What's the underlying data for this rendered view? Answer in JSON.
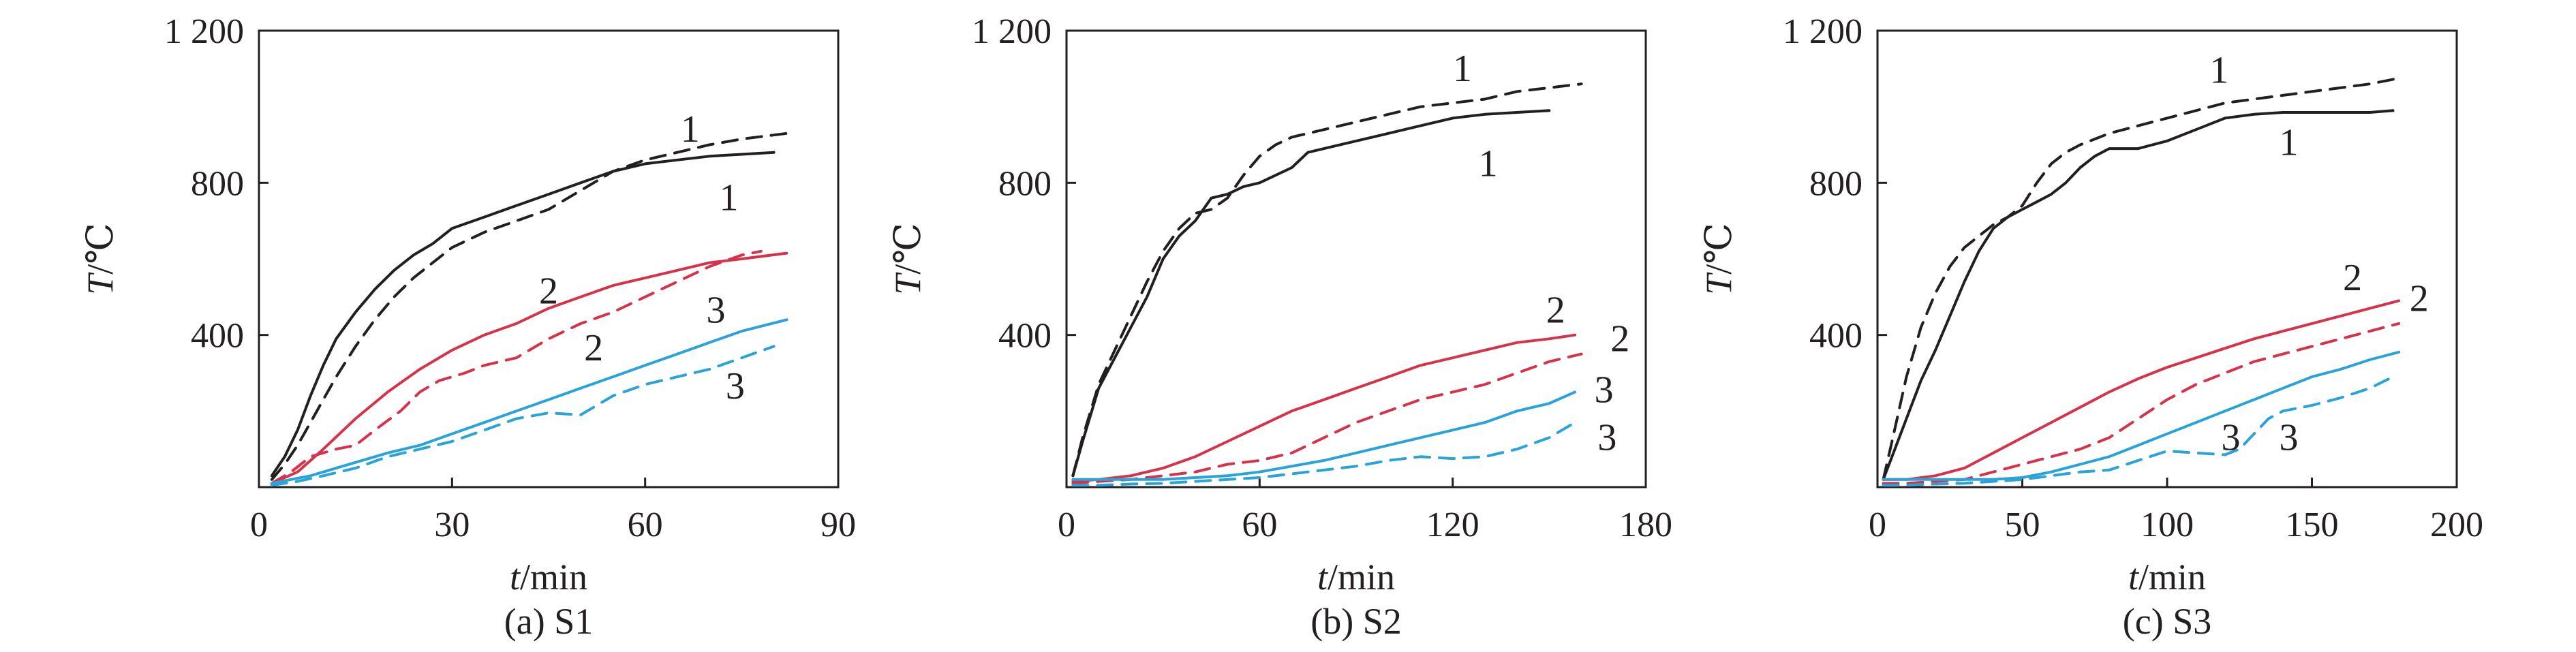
{
  "figure": {
    "background": "#ffffff"
  },
  "chart_data": [
    {
      "type": "line",
      "caption": "(a) S1",
      "xlabel_italic": "t",
      "xlabel_unit": "/min",
      "ylabel_italic": "T",
      "ylabel_unit": "/℃",
      "xlim": [
        0,
        90
      ],
      "ylim": [
        0,
        1200
      ],
      "xticks": [
        0,
        30,
        60,
        90
      ],
      "xtick_labels": [
        "0",
        "30",
        "60",
        "90"
      ],
      "yticks": [
        400,
        800,
        1200
      ],
      "ytick_labels": [
        "400",
        "800",
        "1 200"
      ],
      "grid": false,
      "series": [
        {
          "curve": "1",
          "style": "solid",
          "color": "#231f20",
          "x": [
            2,
            4,
            6,
            8,
            10,
            12,
            15,
            18,
            21,
            24,
            27,
            30,
            35,
            40,
            45,
            50,
            55,
            60,
            65,
            70,
            75,
            80
          ],
          "y": [
            30,
            80,
            150,
            240,
            320,
            390,
            460,
            520,
            570,
            610,
            640,
            680,
            710,
            740,
            770,
            800,
            830,
            850,
            860,
            870,
            875,
            880
          ]
        },
        {
          "curve": "1",
          "style": "dashed",
          "color": "#231f20",
          "x": [
            2,
            4,
            6,
            8,
            10,
            12,
            15,
            18,
            21,
            24,
            27,
            30,
            35,
            40,
            45,
            50,
            55,
            60,
            65,
            70,
            75,
            82
          ],
          "y": [
            20,
            60,
            110,
            170,
            230,
            290,
            370,
            440,
            500,
            550,
            590,
            630,
            670,
            700,
            730,
            780,
            830,
            860,
            880,
            900,
            915,
            930
          ]
        },
        {
          "curve": "2",
          "style": "solid",
          "color": "#d6324a",
          "x": [
            2,
            6,
            10,
            15,
            20,
            25,
            30,
            35,
            40,
            45,
            50,
            55,
            60,
            65,
            70,
            75,
            82
          ],
          "y": [
            10,
            40,
            100,
            180,
            250,
            310,
            360,
            400,
            430,
            470,
            500,
            530,
            550,
            570,
            590,
            600,
            615
          ]
        },
        {
          "curve": "2",
          "style": "dashed",
          "color": "#d6324a",
          "x": [
            2,
            5,
            8,
            12,
            15,
            18,
            22,
            25,
            28,
            32,
            35,
            40,
            45,
            50,
            55,
            60,
            65,
            70,
            75,
            78
          ],
          "y": [
            10,
            40,
            80,
            100,
            110,
            150,
            200,
            250,
            280,
            300,
            320,
            340,
            390,
            430,
            460,
            500,
            540,
            580,
            610,
            620
          ]
        },
        {
          "curve": "3",
          "style": "solid",
          "color": "#2aa3d8",
          "x": [
            2,
            5,
            8,
            12,
            16,
            20,
            25,
            30,
            35,
            40,
            45,
            50,
            55,
            60,
            65,
            70,
            75,
            82
          ],
          "y": [
            10,
            20,
            30,
            50,
            70,
            90,
            110,
            140,
            170,
            200,
            230,
            260,
            290,
            320,
            350,
            380,
            410,
            440
          ]
        },
        {
          "curve": "3",
          "style": "dashed",
          "color": "#2aa3d8",
          "x": [
            2,
            6,
            10,
            15,
            20,
            25,
            30,
            35,
            40,
            45,
            50,
            55,
            60,
            65,
            70,
            75,
            80
          ],
          "y": [
            5,
            15,
            30,
            50,
            80,
            100,
            120,
            150,
            180,
            195,
            190,
            240,
            270,
            290,
            310,
            340,
            370
          ]
        }
      ],
      "curve_labels": [
        {
          "text": "1",
          "x": 67,
          "y": 940
        },
        {
          "text": "1",
          "x": 73,
          "y": 760
        },
        {
          "text": "2",
          "x": 45,
          "y": 515
        },
        {
          "text": "2",
          "x": 52,
          "y": 365
        },
        {
          "text": "3",
          "x": 71,
          "y": 465
        },
        {
          "text": "3",
          "x": 74,
          "y": 265
        }
      ]
    },
    {
      "type": "line",
      "caption": "(b) S2",
      "xlabel_italic": "t",
      "xlabel_unit": "/min",
      "ylabel_italic": "T",
      "ylabel_unit": "/℃",
      "xlim": [
        0,
        180
      ],
      "ylim": [
        0,
        1200
      ],
      "xticks": [
        0,
        60,
        120,
        180
      ],
      "xtick_labels": [
        "0",
        "60",
        "120",
        "180"
      ],
      "yticks": [
        400,
        800,
        1200
      ],
      "ytick_labels": [
        "400",
        "800",
        "1 200"
      ],
      "grid": false,
      "series": [
        {
          "curve": "1",
          "style": "solid",
          "color": "#231f20",
          "x": [
            2,
            5,
            10,
            15,
            20,
            25,
            30,
            35,
            40,
            45,
            50,
            55,
            60,
            65,
            70,
            75,
            80,
            90,
            100,
            110,
            120,
            130,
            140,
            150
          ],
          "y": [
            30,
            120,
            260,
            340,
            420,
            500,
            600,
            660,
            700,
            760,
            770,
            790,
            800,
            820,
            840,
            880,
            890,
            910,
            930,
            950,
            970,
            980,
            985,
            990
          ]
        },
        {
          "curve": "1",
          "style": "dashed",
          "color": "#231f20",
          "x": [
            2,
            5,
            10,
            15,
            20,
            25,
            30,
            35,
            40,
            45,
            50,
            55,
            60,
            65,
            70,
            80,
            90,
            100,
            110,
            120,
            130,
            140,
            150,
            160
          ],
          "y": [
            30,
            130,
            270,
            360,
            450,
            540,
            620,
            680,
            720,
            730,
            760,
            820,
            870,
            900,
            920,
            940,
            960,
            980,
            1000,
            1010,
            1020,
            1040,
            1050,
            1060
          ]
        },
        {
          "curve": "2",
          "style": "solid",
          "color": "#d6324a",
          "x": [
            2,
            10,
            20,
            30,
            40,
            50,
            60,
            70,
            80,
            90,
            100,
            110,
            120,
            130,
            140,
            150,
            158
          ],
          "y": [
            15,
            20,
            30,
            50,
            80,
            120,
            160,
            200,
            230,
            260,
            290,
            320,
            340,
            360,
            380,
            390,
            400
          ]
        },
        {
          "curve": "2",
          "style": "dashed",
          "color": "#d6324a",
          "x": [
            2,
            10,
            20,
            30,
            40,
            50,
            60,
            70,
            80,
            90,
            100,
            110,
            120,
            130,
            140,
            150,
            160
          ],
          "y": [
            10,
            15,
            20,
            30,
            40,
            60,
            70,
            90,
            130,
            170,
            200,
            230,
            250,
            270,
            300,
            330,
            350
          ]
        },
        {
          "curve": "3",
          "style": "solid",
          "color": "#2aa3d8",
          "x": [
            2,
            10,
            20,
            30,
            40,
            50,
            60,
            70,
            80,
            90,
            100,
            110,
            120,
            130,
            140,
            150,
            158
          ],
          "y": [
            20,
            20,
            20,
            20,
            25,
            30,
            40,
            55,
            70,
            90,
            110,
            130,
            150,
            170,
            200,
            220,
            250
          ]
        },
        {
          "curve": "3",
          "style": "dashed",
          "color": "#2aa3d8",
          "x": [
            2,
            10,
            20,
            30,
            40,
            50,
            60,
            70,
            80,
            90,
            100,
            110,
            120,
            130,
            140,
            150,
            158
          ],
          "y": [
            5,
            5,
            8,
            10,
            15,
            20,
            25,
            35,
            45,
            55,
            70,
            80,
            75,
            80,
            100,
            130,
            170
          ]
        }
      ],
      "curve_labels": [
        {
          "text": "1",
          "x": 123,
          "y": 1100
        },
        {
          "text": "1",
          "x": 131,
          "y": 850
        },
        {
          "text": "2",
          "x": 152,
          "y": 465
        },
        {
          "text": "2",
          "x": 172,
          "y": 390
        },
        {
          "text": "3",
          "x": 167,
          "y": 255
        },
        {
          "text": "3",
          "x": 168,
          "y": 130
        }
      ]
    },
    {
      "type": "line",
      "caption": "(c) S3",
      "xlabel_italic": "t",
      "xlabel_unit": "/min",
      "ylabel_italic": "T",
      "ylabel_unit": "/℃",
      "xlim": [
        0,
        200
      ],
      "ylim": [
        0,
        1200
      ],
      "xticks": [
        0,
        50,
        100,
        150,
        200
      ],
      "xtick_labels": [
        "0",
        "50",
        "100",
        "150",
        "200"
      ],
      "yticks": [
        400,
        800,
        1200
      ],
      "ytick_labels": [
        "400",
        "800",
        "1 200"
      ],
      "grid": false,
      "series": [
        {
          "curve": "1",
          "style": "solid",
          "color": "#231f20",
          "x": [
            2,
            5,
            10,
            15,
            20,
            25,
            30,
            35,
            40,
            45,
            50,
            55,
            60,
            65,
            70,
            75,
            80,
            90,
            100,
            110,
            120,
            130,
            140,
            150,
            160,
            170,
            178
          ],
          "y": [
            20,
            80,
            180,
            280,
            360,
            450,
            540,
            620,
            680,
            710,
            730,
            750,
            770,
            800,
            840,
            870,
            890,
            890,
            910,
            940,
            970,
            980,
            985,
            985,
            985,
            985,
            990
          ]
        },
        {
          "curve": "1",
          "style": "dashed",
          "color": "#231f20",
          "x": [
            2,
            5,
            10,
            15,
            20,
            25,
            30,
            35,
            40,
            45,
            50,
            55,
            60,
            65,
            70,
            80,
            90,
            100,
            110,
            120,
            130,
            140,
            150,
            160,
            170,
            180
          ],
          "y": [
            20,
            120,
            290,
            420,
            510,
            580,
            630,
            660,
            690,
            710,
            740,
            800,
            850,
            880,
            900,
            930,
            950,
            970,
            990,
            1010,
            1020,
            1030,
            1040,
            1050,
            1060,
            1075
          ]
        },
        {
          "curve": "2",
          "style": "solid",
          "color": "#d6324a",
          "x": [
            2,
            10,
            20,
            30,
            40,
            50,
            60,
            70,
            80,
            90,
            100,
            110,
            120,
            130,
            140,
            150,
            160,
            170,
            180
          ],
          "y": [
            20,
            20,
            30,
            50,
            90,
            130,
            170,
            210,
            250,
            285,
            315,
            340,
            365,
            390,
            410,
            430,
            450,
            470,
            490
          ]
        },
        {
          "curve": "2",
          "style": "dashed",
          "color": "#d6324a",
          "x": [
            2,
            10,
            20,
            30,
            40,
            50,
            60,
            70,
            80,
            90,
            100,
            110,
            120,
            130,
            140,
            150,
            160,
            170,
            180
          ],
          "y": [
            10,
            10,
            15,
            20,
            40,
            60,
            80,
            100,
            130,
            180,
            230,
            270,
            300,
            330,
            350,
            370,
            390,
            410,
            430
          ]
        },
        {
          "curve": "3",
          "style": "solid",
          "color": "#2aa3d8",
          "x": [
            2,
            10,
            20,
            30,
            40,
            50,
            60,
            70,
            80,
            90,
            100,
            110,
            120,
            130,
            140,
            150,
            160,
            170,
            180
          ],
          "y": [
            20,
            20,
            20,
            20,
            20,
            25,
            40,
            60,
            80,
            110,
            140,
            170,
            200,
            230,
            260,
            290,
            310,
            335,
            355
          ]
        },
        {
          "curve": "3",
          "style": "dashed",
          "color": "#2aa3d8",
          "x": [
            2,
            10,
            20,
            30,
            40,
            50,
            60,
            70,
            80,
            90,
            100,
            110,
            120,
            125,
            130,
            135,
            140,
            150,
            160,
            170,
            178
          ],
          "y": [
            5,
            5,
            8,
            10,
            15,
            20,
            30,
            40,
            45,
            70,
            95,
            90,
            85,
            100,
            140,
            180,
            200,
            215,
            235,
            260,
            290
          ]
        }
      ],
      "curve_labels": [
        {
          "text": "1",
          "x": 118,
          "y": 1095
        },
        {
          "text": "1",
          "x": 142,
          "y": 905
        },
        {
          "text": "2",
          "x": 164,
          "y": 550
        },
        {
          "text": "2",
          "x": 187,
          "y": 495
        },
        {
          "text": "3",
          "x": 122,
          "y": 130
        },
        {
          "text": "3",
          "x": 142,
          "y": 130
        }
      ]
    }
  ]
}
